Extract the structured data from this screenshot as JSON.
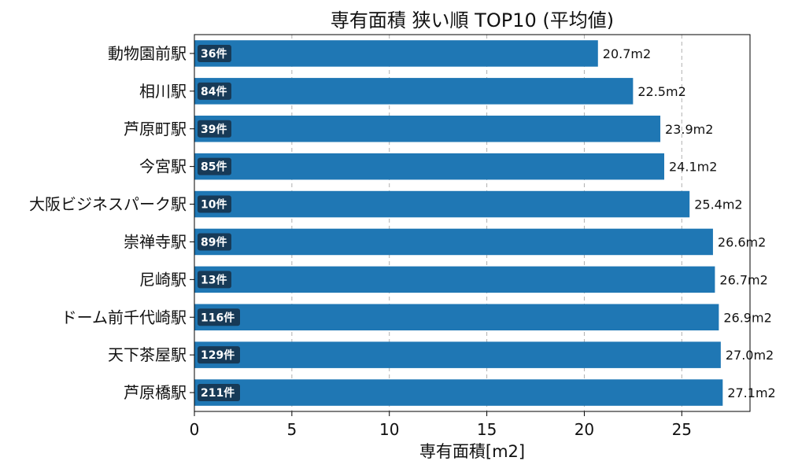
{
  "chart_data": {
    "type": "bar",
    "orientation": "horizontal",
    "title": "専有面積 狭い順 TOP10 (平均値)",
    "xlabel": "専有面積[m2]",
    "ylabel": "",
    "xlim": [
      0,
      28.5
    ],
    "xticks": [
      0,
      5,
      10,
      15,
      20,
      25
    ],
    "xtick_labels": [
      "0",
      "5",
      "10",
      "15",
      "20",
      "25"
    ],
    "grid": "x-dashed",
    "colors": {
      "bar": "#1f77b4",
      "count_badge": "#173a57"
    },
    "categories": [
      "動物園前駅",
      "相川駅",
      "芦原町駅",
      "今宮駅",
      "大阪ビジネスパーク駅",
      "崇禅寺駅",
      "尼崎駅",
      "ドーム前千代崎駅",
      "天下茶屋駅",
      "芦原橋駅"
    ],
    "values": [
      20.7,
      22.5,
      23.9,
      24.1,
      25.4,
      26.6,
      26.7,
      26.9,
      27.0,
      27.1
    ],
    "value_labels": [
      "20.7m2",
      "22.5m2",
      "23.9m2",
      "24.1m2",
      "25.4m2",
      "26.6m2",
      "26.7m2",
      "26.9m2",
      "27.0m2",
      "27.1m2"
    ],
    "counts": [
      "36件",
      "84件",
      "39件",
      "85件",
      "10件",
      "89件",
      "13件",
      "116件",
      "129件",
      "211件"
    ]
  }
}
